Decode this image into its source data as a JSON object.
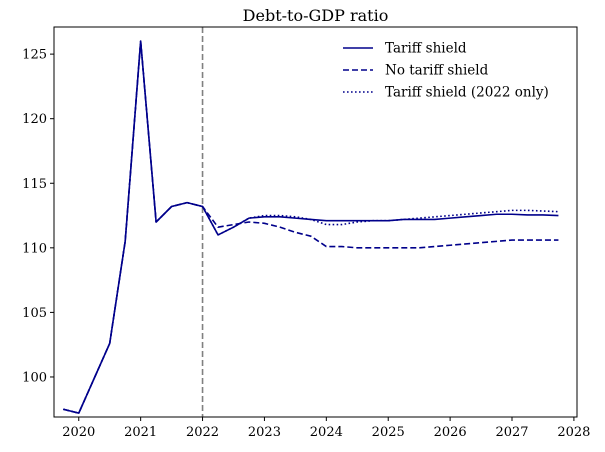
{
  "chart_data": {
    "type": "line",
    "title": "Debt-to-GDP ratio",
    "xlabel": "",
    "ylabel": "",
    "xlim": [
      2019.6,
      2028.05
    ],
    "ylim": [
      96.9,
      127.1
    ],
    "xticks": [
      2020,
      2021,
      2022,
      2023,
      2024,
      2025,
      2026,
      2027,
      2028
    ],
    "xtick_labels": [
      "2020",
      "2021",
      "2022",
      "2023",
      "2024",
      "2025",
      "2026",
      "2027",
      "2028"
    ],
    "yticks": [
      100,
      105,
      110,
      115,
      120,
      125
    ],
    "ytick_labels": [
      "100",
      "105",
      "110",
      "115",
      "120",
      "125"
    ],
    "grid": false,
    "legend_position": "top-right",
    "vline": {
      "x": 2022,
      "color": "#808080",
      "style": "dashed"
    },
    "line_color": "#00008b",
    "series": [
      {
        "name": "Tariff shield",
        "style": "solid",
        "x": [
          2019.75,
          2020.0,
          2020.25,
          2020.5,
          2020.75,
          2021.0,
          2021.25,
          2021.5,
          2021.75,
          2022.0,
          2022.25,
          2022.5,
          2022.75,
          2023.0,
          2023.25,
          2023.5,
          2023.75,
          2024.0,
          2024.25,
          2024.5,
          2024.75,
          2025.0,
          2025.25,
          2025.5,
          2025.75,
          2026.0,
          2026.25,
          2026.5,
          2026.75,
          2027.0,
          2027.25,
          2027.5,
          2027.75
        ],
        "values": [
          97.5,
          97.2,
          99.9,
          102.6,
          110.5,
          126.0,
          112.0,
          113.2,
          113.5,
          113.2,
          111.0,
          111.6,
          112.3,
          112.4,
          112.4,
          112.3,
          112.2,
          112.1,
          112.1,
          112.1,
          112.1,
          112.1,
          112.2,
          112.2,
          112.2,
          112.3,
          112.4,
          112.5,
          112.6,
          112.6,
          112.55,
          112.55,
          112.5
        ]
      },
      {
        "name": "No tariff shield",
        "style": "dashed",
        "x": [
          2019.75,
          2020.0,
          2020.25,
          2020.5,
          2020.75,
          2021.0,
          2021.25,
          2021.5,
          2021.75,
          2022.0,
          2022.25,
          2022.5,
          2022.75,
          2023.0,
          2023.25,
          2023.5,
          2023.75,
          2024.0,
          2024.25,
          2024.5,
          2024.75,
          2025.0,
          2025.25,
          2025.5,
          2025.75,
          2026.0,
          2026.25,
          2026.5,
          2026.75,
          2027.0,
          2027.25,
          2027.5,
          2027.75
        ],
        "values": [
          97.5,
          97.2,
          99.9,
          102.6,
          110.5,
          126.0,
          112.0,
          113.2,
          113.5,
          113.2,
          111.6,
          111.8,
          112.0,
          111.9,
          111.6,
          111.2,
          110.9,
          110.1,
          110.1,
          110.0,
          110.0,
          110.0,
          110.0,
          110.0,
          110.1,
          110.2,
          110.3,
          110.4,
          110.5,
          110.6,
          110.6,
          110.6,
          110.6
        ]
      },
      {
        "name": "Tariff shield (2022 only)",
        "style": "dotted",
        "x": [
          2019.75,
          2020.0,
          2020.25,
          2020.5,
          2020.75,
          2021.0,
          2021.25,
          2021.5,
          2021.75,
          2022.0,
          2022.25,
          2022.5,
          2022.75,
          2023.0,
          2023.25,
          2023.5,
          2023.75,
          2024.0,
          2024.25,
          2024.5,
          2024.75,
          2025.0,
          2025.25,
          2025.5,
          2025.75,
          2026.0,
          2026.25,
          2026.5,
          2026.75,
          2027.0,
          2027.25,
          2027.5,
          2027.75
        ],
        "values": [
          97.5,
          97.2,
          99.9,
          102.6,
          110.5,
          126.0,
          112.0,
          113.2,
          113.5,
          113.2,
          111.0,
          111.6,
          112.3,
          112.5,
          112.5,
          112.4,
          112.2,
          111.8,
          111.8,
          112.0,
          112.1,
          112.1,
          112.2,
          112.3,
          112.4,
          112.5,
          112.6,
          112.7,
          112.8,
          112.9,
          112.9,
          112.85,
          112.8
        ]
      }
    ]
  }
}
